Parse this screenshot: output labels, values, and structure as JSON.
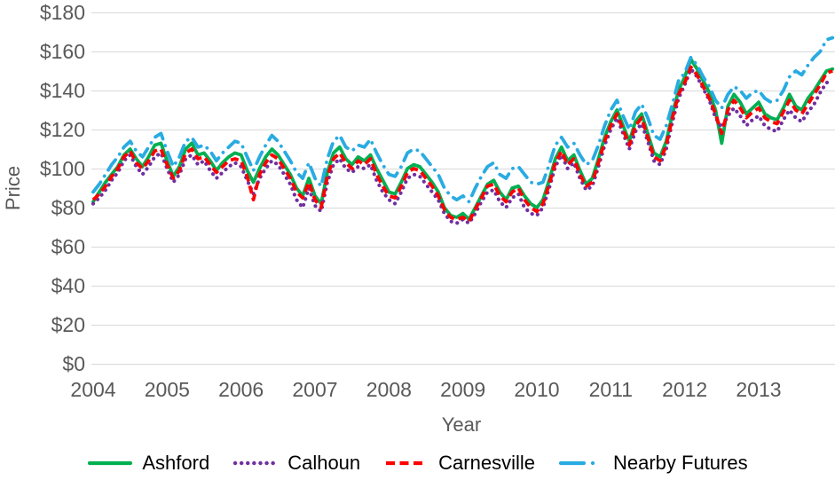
{
  "background": "#FFFFFF",
  "axis_text_color": "#595959",
  "grid_color": "#D9D9D9",
  "chart_data": {
    "type": "line",
    "title": "",
    "xlabel": "Year",
    "ylabel": "Price",
    "ylim": [
      0,
      180
    ],
    "grid": "horizontal",
    "legend_position": "bottom",
    "x_tick_labels": [
      "2004",
      "2005",
      "2006",
      "2007",
      "2008",
      "2009",
      "2010",
      "2011",
      "2012",
      "2013"
    ],
    "y_tick_values": [
      0,
      20,
      40,
      60,
      80,
      100,
      120,
      140,
      160,
      180
    ],
    "y_tick_labels": [
      "$0",
      "$20",
      "$40",
      "$60",
      "$80",
      "$100",
      "$120",
      "$140",
      "$160",
      "$180"
    ],
    "x_start": "2004-01",
    "points_per_year": 12,
    "series": [
      {
        "name": "Ashford",
        "color": "#00B050",
        "style": "solid",
        "values": [
          83,
          88,
          93,
          97,
          101,
          107,
          110,
          105,
          101,
          106,
          112,
          113,
          104,
          96,
          101,
          110,
          113,
          107,
          108,
          104,
          99,
          103,
          106,
          108,
          107,
          99,
          93,
          100,
          106,
          110,
          107,
          102,
          97,
          90,
          86,
          95,
          86,
          82,
          98,
          108,
          111,
          105,
          102,
          106,
          104,
          107,
          100,
          94,
          88,
          87,
          93,
          100,
          102,
          101,
          97,
          93,
          88,
          80,
          76,
          75,
          77,
          74,
          80,
          86,
          92,
          94,
          88,
          84,
          90,
          91,
          86,
          82,
          80,
          84,
          94,
          105,
          111,
          104,
          107,
          99,
          92,
          95,
          105,
          116,
          124,
          130,
          122,
          114,
          124,
          128,
          118,
          108,
          106,
          114,
          128,
          140,
          147,
          156,
          151,
          145,
          139,
          130,
          113,
          132,
          138,
          134,
          128,
          131,
          134,
          128,
          126,
          125,
          131,
          138,
          132,
          130,
          136,
          140,
          145,
          150,
          151
        ]
      },
      {
        "name": "Calhoun",
        "color": "#7030A0",
        "style": "dotted",
        "values": [
          82,
          85,
          89,
          94,
          98,
          104,
          107,
          101,
          97,
          101,
          106,
          108,
          100,
          93,
          97,
          105,
          107,
          102,
          104,
          99,
          95,
          98,
          101,
          103,
          101,
          94,
          87,
          95,
          100,
          104,
          102,
          97,
          92,
          84,
          80,
          90,
          81,
          78,
          93,
          102,
          105,
          100,
          98,
          101,
          100,
          102,
          94,
          88,
          84,
          82,
          88,
          95,
          97,
          96,
          92,
          88,
          84,
          77,
          73,
          72,
          74,
          72,
          77,
          83,
          88,
          89,
          83,
          80,
          85,
          87,
          80,
          77,
          76,
          80,
          90,
          101,
          107,
          100,
          103,
          95,
          89,
          91,
          101,
          112,
          120,
          126,
          118,
          110,
          119,
          123,
          114,
          104,
          102,
          110,
          124,
          136,
          143,
          151,
          147,
          141,
          135,
          126,
          121,
          127,
          131,
          127,
          122,
          125,
          127,
          122,
          120,
          119,
          125,
          130,
          126,
          124,
          129,
          133,
          139,
          144,
          145
        ]
      },
      {
        "name": "Carnesville",
        "color": "#FF0000",
        "style": "dashed",
        "values": [
          84,
          87,
          91,
          96,
          100,
          106,
          109,
          103,
          100,
          104,
          109,
          110,
          102,
          95,
          99,
          108,
          110,
          105,
          106,
          102,
          98,
          101,
          104,
          105,
          104,
          96,
          84,
          97,
          103,
          107,
          105,
          100,
          95,
          88,
          85,
          93,
          84,
          80,
          96,
          105,
          108,
          103,
          100,
          104,
          102,
          105,
          97,
          91,
          86,
          85,
          91,
          98,
          100,
          99,
          95,
          91,
          86,
          79,
          75,
          74,
          75,
          73,
          79,
          85,
          91,
          92,
          86,
          83,
          88,
          90,
          84,
          80,
          78,
          82,
          92,
          103,
          109,
          102,
          105,
          97,
          91,
          93,
          103,
          114,
          122,
          128,
          120,
          112,
          122,
          126,
          116,
          106,
          104,
          112,
          126,
          138,
          144,
          152,
          148,
          142,
          136,
          128,
          118,
          130,
          135,
          131,
          126,
          129,
          131,
          126,
          124,
          123,
          129,
          135,
          130,
          128,
          133,
          138,
          143,
          149,
          150
        ]
      },
      {
        "name": "Nearby Futures",
        "color": "#29ABE2",
        "style": "dash-dot",
        "values": [
          88,
          92,
          97,
          102,
          106,
          111,
          114,
          109,
          106,
          111,
          116,
          118,
          109,
          101,
          106,
          114,
          116,
          111,
          112,
          109,
          104,
          108,
          111,
          114,
          113,
          106,
          99,
          106,
          112,
          117,
          114,
          109,
          104,
          98,
          95,
          103,
          95,
          91,
          105,
          114,
          117,
          111,
          109,
          112,
          111,
          115,
          108,
          102,
          97,
          96,
          101,
          108,
          110,
          109,
          105,
          101,
          97,
          90,
          86,
          84,
          86,
          83,
          90,
          96,
          101,
          103,
          97,
          95,
          100,
          101,
          97,
          93,
          92,
          93,
          102,
          112,
          116,
          111,
          113,
          107,
          102,
          104,
          112,
          122,
          130,
          135,
          127,
          120,
          129,
          133,
          126,
          117,
          115,
          122,
          133,
          145,
          149,
          157,
          153,
          147,
          142,
          135,
          131,
          138,
          142,
          140,
          136,
          139,
          140,
          136,
          134,
          135,
          140,
          147,
          150,
          148,
          153,
          157,
          160,
          166,
          167
        ]
      }
    ]
  }
}
